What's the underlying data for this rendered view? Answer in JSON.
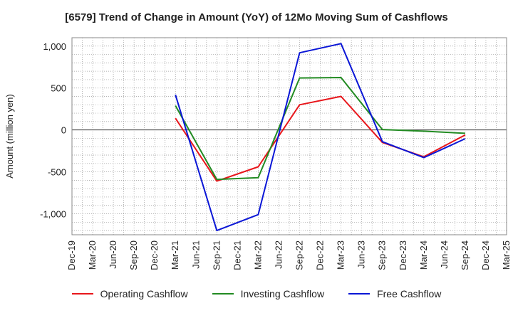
{
  "chart_data": {
    "type": "line",
    "title": "[6579]  Trend of Change in Amount (YoY) of 12Mo Moving Sum of Cashflows",
    "xlabel": "",
    "ylabel": "Amount (million yen)",
    "ylim": [
      -1250,
      1100
    ],
    "yticks": [
      1000,
      500,
      0,
      -500,
      -1000
    ],
    "ytick_labels": [
      "1,000",
      "500",
      "0",
      "-500",
      "-1,000"
    ],
    "categories": [
      "Dec-19",
      "Mar-20",
      "Jun-20",
      "Sep-20",
      "Dec-20",
      "Mar-21",
      "Jun-21",
      "Sep-21",
      "Dec-21",
      "Mar-22",
      "Jun-22",
      "Sep-22",
      "Dec-22",
      "Mar-23",
      "Jun-23",
      "Sep-23",
      "Dec-23",
      "Mar-24",
      "Jun-24",
      "Sep-24",
      "Dec-24",
      "Mar-25"
    ],
    "grid": true,
    "legend_position": "bottom",
    "series": [
      {
        "name": "Operating Cashflow",
        "color": "#e8161b",
        "values": [
          null,
          null,
          null,
          null,
          null,
          140,
          null,
          -610,
          null,
          -440,
          null,
          300,
          null,
          400,
          null,
          -150,
          null,
          -320,
          null,
          -60,
          null,
          null
        ]
      },
      {
        "name": "Investing Cashflow",
        "color": "#228b22",
        "values": [
          null,
          null,
          null,
          null,
          null,
          290,
          null,
          -590,
          null,
          -570,
          null,
          620,
          null,
          625,
          null,
          5,
          null,
          -15,
          null,
          -40,
          null,
          null
        ]
      },
      {
        "name": "Free Cashflow",
        "color": "#0a16d6",
        "values": [
          null,
          null,
          null,
          null,
          null,
          420,
          null,
          -1200,
          null,
          -1010,
          null,
          920,
          null,
          1030,
          null,
          -140,
          null,
          -330,
          null,
          -105,
          null,
          null
        ]
      }
    ]
  }
}
